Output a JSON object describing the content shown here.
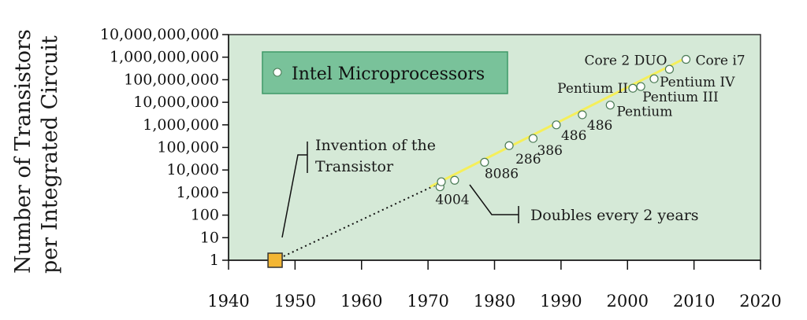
{
  "chart_data": {
    "type": "scatter",
    "title": "",
    "ylabel_line1": "Number of Transistors",
    "ylabel_line2": "per Integrated Circuit",
    "xlabel": "",
    "y_scale": "log",
    "ylim": [
      1,
      10000000000
    ],
    "xlim": [
      1940,
      2020
    ],
    "grid": false,
    "x_ticks": [
      1940,
      1950,
      1960,
      1970,
      1980,
      1990,
      2000,
      2010,
      2020
    ],
    "y_ticks": [
      {
        "value": 1,
        "label": "1"
      },
      {
        "value": 10,
        "label": "10"
      },
      {
        "value": 100,
        "label": "100"
      },
      {
        "value": 1000,
        "label": "1,000"
      },
      {
        "value": 10000,
        "label": "10,000"
      },
      {
        "value": 100000,
        "label": "100,000"
      },
      {
        "value": 1000000,
        "label": "1,000,000"
      },
      {
        "value": 10000000,
        "label": "10,000,000"
      },
      {
        "value": 100000000,
        "label": "100,000,000"
      },
      {
        "value": 1000000000,
        "label": "1,000,000,000"
      },
      {
        "value": 10000000000,
        "label": "10,000,000,000"
      }
    ],
    "legend": {
      "label": "Intel Microprocessors",
      "position": "top-left"
    },
    "series": [
      {
        "name": "Intel Microprocessors",
        "points": [
          {
            "x": 1971.8,
            "y": 1800,
            "label": "4004"
          },
          {
            "x": 1972,
            "y": 3000,
            "label": ""
          },
          {
            "x": 1974,
            "y": 3500,
            "label": ""
          },
          {
            "x": 1978.5,
            "y": 22000,
            "label": "8086"
          },
          {
            "x": 1982.2,
            "y": 120000,
            "label": "286"
          },
          {
            "x": 1985.8,
            "y": 250000,
            "label": "386"
          },
          {
            "x": 1989.3,
            "y": 1000000,
            "label": "486"
          },
          {
            "x": 1993.2,
            "y": 2800000,
            "label": "486"
          },
          {
            "x": 1997.4,
            "y": 7500000,
            "label": "Pentium"
          },
          {
            "x": 2000.8,
            "y": 42000000,
            "label": "Pentium II"
          },
          {
            "x": 2002,
            "y": 50000000,
            "label": "Pentium III"
          },
          {
            "x": 2004,
            "y": 110000000,
            "label": "Pentium IV"
          },
          {
            "x": 2006.3,
            "y": 290000000,
            "label": ""
          },
          {
            "x": 2008.8,
            "y": 800000000,
            "label": "Core 2 DUO"
          },
          {
            "x": 2008.8,
            "y": 800000000,
            "label": "Core i7"
          }
        ]
      }
    ],
    "trend_line": {
      "x": [
        1970.3,
        2009
      ],
      "y": [
        1800,
        1000000000
      ],
      "color": "#f5ef5a"
    },
    "projection_line": {
      "x": [
        1947,
        1971.5
      ],
      "y": [
        1,
        2400
      ],
      "style": "dotted"
    },
    "invention_marker": {
      "x": 1947,
      "y": 1,
      "color": "#f3b634"
    },
    "annotations": {
      "invention_line1": "Invention of the",
      "invention_line2": "Transistor",
      "doubling": "Doubles every 2 years"
    },
    "colors": {
      "plot_bg": "#d5e9d7",
      "legend_bg": "#79c29a",
      "legend_border": "#3f9968",
      "trend": "#f5ef5a",
      "marker": "#f3b634",
      "point_fill": "#ffffff",
      "point_stroke": "#4a7a55"
    }
  }
}
